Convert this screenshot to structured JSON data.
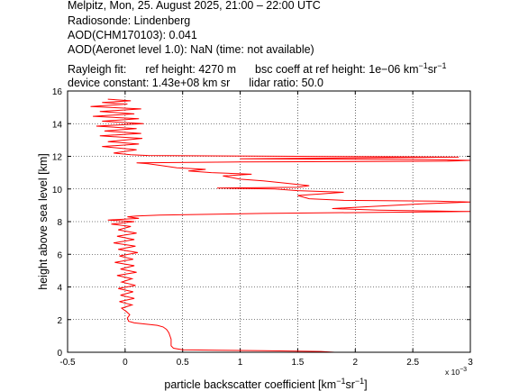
{
  "header": {
    "line1": "Melpitz, Mon, 25. August 2025, 21:00 – 22:00 UTC",
    "line2": "Radiosonde: Lindenberg",
    "line3": "AOD(CHM170103): 0.041",
    "line4": "AOD(Aeronet level 1.0): NaN   (time: not available)",
    "rayleigh_fit": "Rayleigh fit:",
    "ref_height": "ref height: 4270 m",
    "bsc_coeff_prefix": "bsc coeff at ref height: 1e−06 km",
    "bsc_exp1": "−1",
    "bsc_mid": "sr",
    "bsc_exp2": "−1",
    "device_constant": "device constant: 1.43e+08 km sr",
    "lidar_ratio": "lidar ratio: 50.0"
  },
  "chart_data": {
    "type": "line",
    "xlabel_prefix": "particle backscatter coefficient [km",
    "xlabel_exp1": "−1",
    "xlabel_mid": "sr",
    "xlabel_exp2": "−1",
    "xlabel_suffix": "]",
    "x_multiplier": "x 10",
    "x_multiplier_exp": "−3",
    "ylabel": "height above sea level [km]",
    "xlim": [
      -0.5,
      3
    ],
    "ylim": [
      0,
      16
    ],
    "x_ticks": [
      "-0.5",
      "0",
      "0.5",
      "1",
      "1.5",
      "2",
      "2.5",
      "3"
    ],
    "x_tick_values": [
      -0.5,
      0,
      0.5,
      1,
      1.5,
      2,
      2.5,
      3
    ],
    "y_ticks": [
      "0",
      "2",
      "4",
      "6",
      "8",
      "10",
      "12",
      "14",
      "16"
    ],
    "y_tick_values": [
      0,
      2,
      4,
      6,
      8,
      10,
      12,
      14,
      16
    ],
    "grid": true,
    "line_color": "#ff0000",
    "series": [
      {
        "values": [
          [
            1.82,
            0.0
          ],
          [
            1.7,
            0.05
          ],
          [
            1.2,
            0.1
          ],
          [
            0.8,
            0.12
          ],
          [
            0.5,
            0.15
          ],
          [
            0.42,
            0.25
          ],
          [
            0.4,
            0.4
          ],
          [
            0.4,
            0.8
          ],
          [
            0.38,
            1.2
          ],
          [
            0.36,
            1.4
          ],
          [
            0.33,
            1.55
          ],
          [
            0.28,
            1.65
          ],
          [
            0.18,
            1.72
          ],
          [
            0.08,
            1.8
          ],
          [
            0.03,
            1.9
          ],
          [
            0.02,
            2.1
          ],
          [
            0.04,
            2.3
          ],
          [
            0.01,
            2.5
          ],
          [
            -0.03,
            2.7
          ],
          [
            0.06,
            2.9
          ],
          [
            -0.05,
            3.1
          ],
          [
            0.08,
            3.3
          ],
          [
            -0.04,
            3.5
          ],
          [
            0.07,
            3.7
          ],
          [
            -0.06,
            3.9
          ],
          [
            0.09,
            4.1
          ],
          [
            -0.03,
            4.3
          ],
          [
            0.06,
            4.5
          ],
          [
            -0.07,
            4.7
          ],
          [
            0.1,
            4.9
          ],
          [
            -0.04,
            5.1
          ],
          [
            0.08,
            5.3
          ],
          [
            -0.09,
            5.5
          ],
          [
            0.07,
            5.7
          ],
          [
            -0.05,
            5.9
          ],
          [
            0.11,
            6.1
          ],
          [
            -0.06,
            6.3
          ],
          [
            0.09,
            6.5
          ],
          [
            -0.1,
            6.7
          ],
          [
            0.08,
            6.9
          ],
          [
            -0.07,
            7.1
          ],
          [
            0.1,
            7.3
          ],
          [
            -0.06,
            7.5
          ],
          [
            0.05,
            7.7
          ],
          [
            -0.12,
            7.85
          ],
          [
            0.08,
            8.0
          ],
          [
            -0.15,
            8.1
          ],
          [
            0.12,
            8.2
          ],
          [
            0.02,
            8.3
          ],
          [
            0.1,
            8.35
          ],
          [
            0.3,
            8.4
          ],
          [
            1.2,
            8.5
          ],
          [
            2.7,
            8.6
          ],
          [
            3.0,
            8.62
          ],
          [
            2.2,
            8.7
          ],
          [
            1.8,
            8.8
          ],
          [
            2.6,
            9.1
          ],
          [
            3.0,
            9.2
          ],
          [
            2.7,
            9.25
          ],
          [
            1.9,
            9.3
          ],
          [
            1.6,
            9.4
          ],
          [
            1.5,
            9.6
          ],
          [
            1.7,
            9.7
          ],
          [
            1.9,
            9.8
          ],
          [
            1.5,
            9.9
          ],
          [
            1.3,
            10.0
          ],
          [
            0.8,
            10.05
          ],
          [
            1.5,
            10.1
          ],
          [
            1.6,
            10.2
          ],
          [
            1.4,
            10.35
          ],
          [
            1.2,
            10.5
          ],
          [
            1.0,
            10.6
          ],
          [
            0.85,
            10.8
          ],
          [
            1.1,
            10.9
          ],
          [
            0.75,
            11.0
          ],
          [
            0.55,
            11.1
          ],
          [
            0.7,
            11.2
          ],
          [
            0.45,
            11.3
          ],
          [
            0.3,
            11.45
          ],
          [
            0.2,
            11.55
          ],
          [
            0.1,
            11.6
          ],
          [
            1.0,
            11.65
          ],
          [
            2.8,
            11.7
          ],
          [
            3.0,
            11.75
          ],
          [
            2.6,
            11.8
          ],
          [
            1.0,
            11.85
          ],
          [
            2.9,
            11.95
          ],
          [
            1.5,
            12.0
          ],
          [
            0.2,
            12.05
          ],
          [
            0.05,
            12.1
          ],
          [
            -0.1,
            12.2
          ],
          [
            0.1,
            12.4
          ],
          [
            -0.2,
            12.6
          ],
          [
            0.12,
            12.75
          ],
          [
            -0.15,
            12.9
          ],
          [
            0.15,
            13.1
          ],
          [
            -0.22,
            13.25
          ],
          [
            0.14,
            13.4
          ],
          [
            -0.18,
            13.55
          ],
          [
            0.1,
            13.7
          ],
          [
            -0.25,
            13.85
          ],
          [
            0.16,
            14.0
          ],
          [
            -0.2,
            14.15
          ],
          [
            0.12,
            14.3
          ],
          [
            -0.28,
            14.45
          ],
          [
            0.08,
            14.6
          ],
          [
            -0.22,
            14.75
          ],
          [
            0.14,
            14.9
          ],
          [
            -0.3,
            15.05
          ],
          [
            0.02,
            15.2
          ],
          [
            -0.2,
            15.3
          ],
          [
            0.05,
            15.4
          ],
          [
            -0.15,
            15.5
          ]
        ]
      }
    ]
  }
}
